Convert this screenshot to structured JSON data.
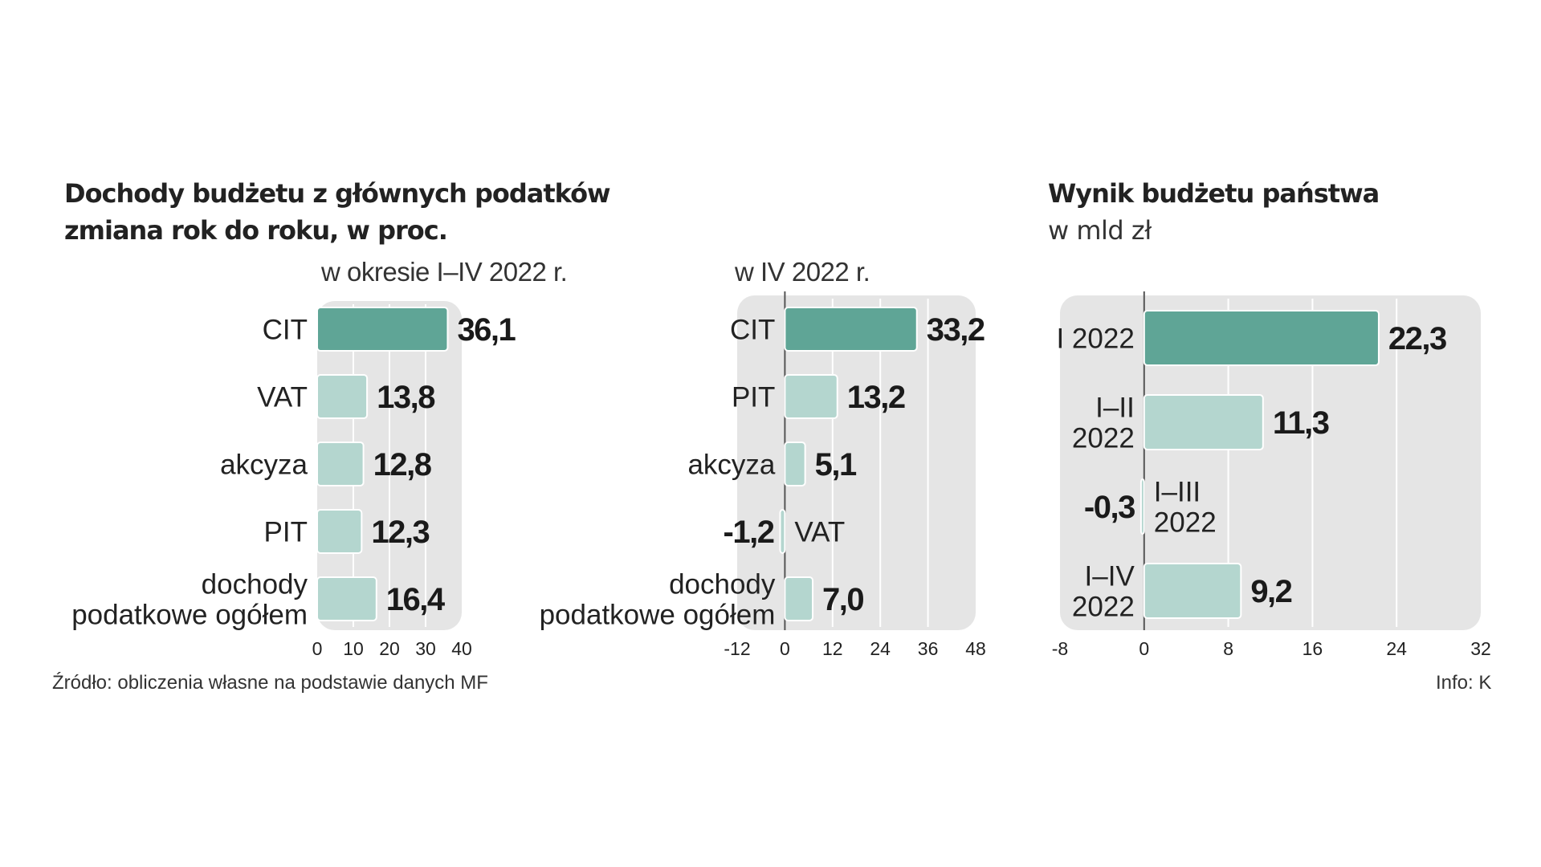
{
  "left": {
    "title": "Dochody budżetu z głównych podatków",
    "subtitle": "zmiana rok do roku, w proc."
  },
  "right": {
    "title": "Wynik budżetu państwa",
    "subtitle": "w mld zł"
  },
  "footer": {
    "source": "Źródło: obliczenia własne na podstawie danych MF",
    "info": "Info: K"
  },
  "colors": {
    "accent": "#5fa596",
    "light": "#b4d6cf",
    "panel": "#e5e5e5",
    "grid": "#ffffff",
    "zero": "#555555"
  },
  "chart_data": [
    {
      "type": "bar",
      "orientation": "horizontal",
      "title": "w okresie I–IV 2022 r.",
      "categories": [
        "CIT",
        "VAT",
        "akcyza",
        "PIT",
        "dochody\npodatkowe ogółem"
      ],
      "values": [
        36.1,
        13.8,
        12.8,
        12.3,
        16.4
      ],
      "value_labels": [
        "36,1",
        "13,8",
        "12,8",
        "12,3",
        "16,4"
      ],
      "xlim": [
        0,
        40
      ],
      "xticks": [
        "0",
        "10",
        "20",
        "30",
        "40"
      ],
      "highlight": 0,
      "grid": true
    },
    {
      "type": "bar",
      "orientation": "horizontal",
      "title": "w IV  2022 r.",
      "categories": [
        "CIT",
        "PIT",
        "akcyza",
        "VAT",
        "dochody\npodatkowe ogółem"
      ],
      "values": [
        33.2,
        13.2,
        5.1,
        -1.2,
        7.0
      ],
      "value_labels": [
        "33,2",
        "13,2",
        "5,1",
        "-1,2",
        "7,0"
      ],
      "xlim": [
        -12,
        48
      ],
      "xticks": [
        "-12",
        "0",
        "12",
        "24",
        "36",
        "48"
      ],
      "highlight": 0,
      "grid": true
    },
    {
      "type": "bar",
      "orientation": "horizontal",
      "title": "",
      "categories": [
        "I 2022",
        "I–II\n2022",
        "I–III\n2022",
        "I–IV\n2022"
      ],
      "values": [
        22.3,
        11.3,
        -0.3,
        9.2
      ],
      "value_labels": [
        "22,3",
        "11,3",
        "-0,3",
        "9,2"
      ],
      "xlim": [
        -8,
        32
      ],
      "xticks": [
        "-8",
        "0",
        "8",
        "16",
        "24",
        "32"
      ],
      "highlight": 0,
      "grid": true
    }
  ]
}
